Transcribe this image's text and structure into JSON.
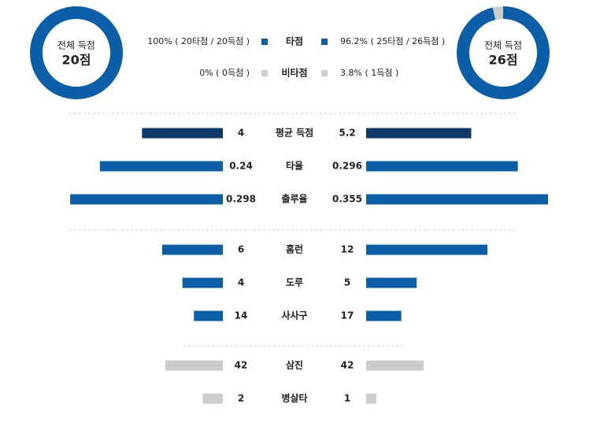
{
  "chart_data": [
    {
      "type": "pie",
      "center_label": "전체 득점",
      "total_label": "20점",
      "values": [
        100,
        0
      ],
      "value_labels": [
        "100% ( 20타점 / 20득점 )",
        "0% ( 0득점 )"
      ]
    },
    {
      "type": "pie",
      "center_label": "전체 득점",
      "total_label": "26점",
      "values": [
        96.2,
        3.8
      ],
      "value_labels": [
        "96.2% ( 25타점 / 26득점 )",
        "3.8% ( 1득점 )"
      ]
    },
    {
      "type": "butterfly",
      "categories": [
        "평균 득점",
        "타율",
        "출루율",
        "홈런",
        "도루",
        "사사구",
        "삼진",
        "병살타"
      ],
      "series": [
        {
          "values": [
            4,
            0.24,
            0.298,
            6,
            4,
            14,
            42,
            2
          ]
        },
        {
          "values": [
            5.2,
            0.296,
            0.355,
            12,
            5,
            17,
            42,
            1
          ]
        }
      ],
      "colors": [
        "#0d3a6b",
        "#0b5ea8",
        "#0b5ea8",
        "#0b5ea8",
        "#0b5ea8",
        "#0b5ea8",
        "#cccccc",
        "#cccccc"
      ],
      "xlims": [
        [
          0,
          9
        ],
        [
          0,
          0.355
        ],
        [
          0,
          0.355
        ],
        [
          0,
          18
        ],
        [
          0,
          18
        ],
        [
          0,
          88
        ],
        [
          0,
          133
        ],
        [
          0,
          18
        ]
      ]
    }
  ],
  "legend": {
    "categories": [
      "타점",
      "비타점"
    ],
    "colors": [
      "#0b5ea8",
      "#cccccc"
    ]
  }
}
